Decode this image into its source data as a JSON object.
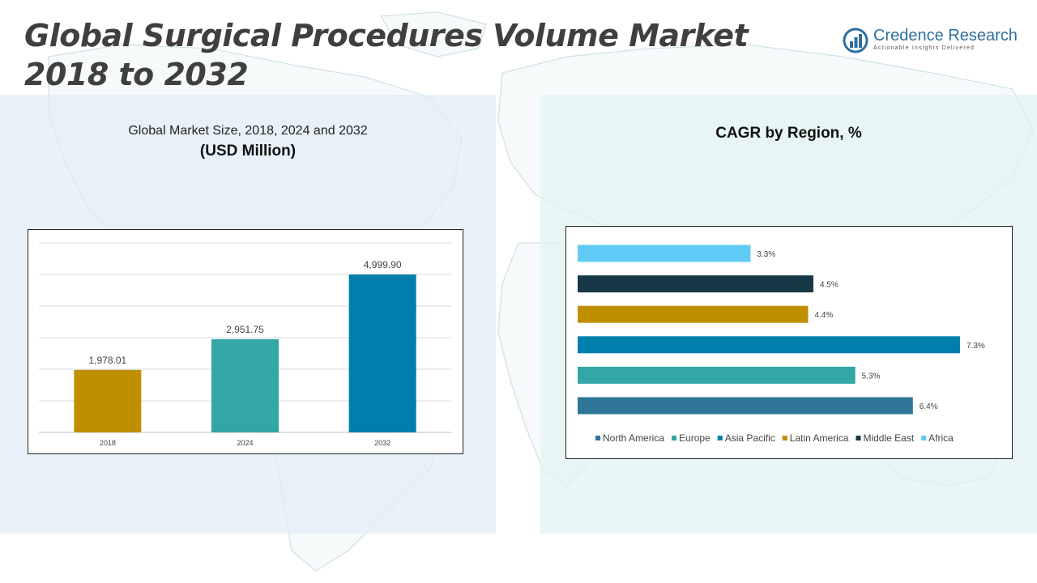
{
  "header": {
    "title": "Global Surgical Procedures Volume Market 2018 to 2032",
    "logo_name": "Credence Research",
    "logo_tagline": "Actionable Insights Delivered"
  },
  "left_panel": {
    "subtitle": "Global Market Size, 2018, 2024 and 2032",
    "unit": "(USD Million)"
  },
  "right_panel": {
    "title": "CAGR by Region, %"
  },
  "colors": {
    "title": "#3f3f3f",
    "brand": "#2e6f9e",
    "left_panel_bg": "#e0edf5",
    "right_panel_bg": "#e0f2f2"
  },
  "chart_data": [
    {
      "type": "bar",
      "categories": [
        "2018",
        "2024",
        "2032"
      ],
      "values": [
        1978.01,
        2951.75,
        4999.9
      ],
      "value_labels": [
        "1,978.01",
        "2,951.75",
        "4,999.90"
      ],
      "colors": [
        "#bf8f00",
        "#33a6a6",
        "#007fad"
      ],
      "ylim": [
        0,
        6000
      ],
      "grid": true,
      "legend": "none"
    },
    {
      "type": "bar",
      "orientation": "horizontal",
      "categories": [
        "Africa",
        "Middle East",
        "Latin America",
        "Asia Pacific",
        "Europe",
        "North America"
      ],
      "values": [
        3.3,
        4.5,
        4.4,
        7.3,
        5.3,
        6.4
      ],
      "value_labels": [
        "3.3%",
        "4.5%",
        "4.4%",
        "7.3%",
        "5.3%",
        "6.4%"
      ],
      "colors": [
        "#5fcbf5",
        "#173847",
        "#bf8f00",
        "#007fad",
        "#33a6a6",
        "#2f7597"
      ],
      "xlim": [
        0,
        7.3
      ],
      "grid": false,
      "legend": "bottom",
      "legend_order": [
        "North America",
        "Europe",
        "Asia Pacific",
        "Latin America",
        "Middle East",
        "Africa"
      ]
    }
  ]
}
